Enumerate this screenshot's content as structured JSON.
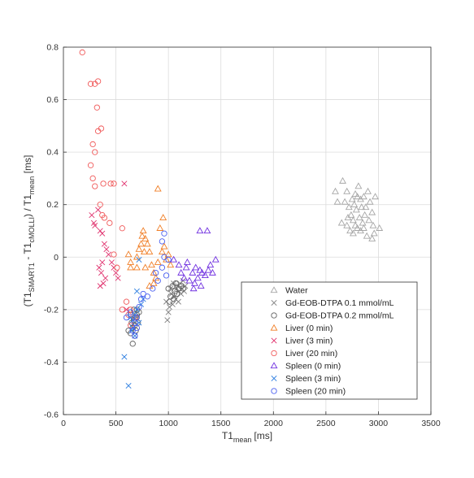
{
  "chart_data": {
    "type": "scatter",
    "title": "",
    "xlabel": "T1",
    "xlabel_sub": "mean",
    "xlabel_unit": "[ms]",
    "ylabel_parts": [
      "(T1",
      "SMART1",
      " - T1",
      "cMOLLI",
      ") / T1",
      "mean",
      " [ms]"
    ],
    "xlim": [
      0,
      3500
    ],
    "ylim": [
      -0.6,
      0.8
    ],
    "xticks": [
      0,
      500,
      1000,
      1500,
      2000,
      2500,
      3000,
      3500
    ],
    "yticks": [
      -0.6,
      -0.4,
      -0.2,
      0,
      0.2,
      0.4,
      0.6,
      0.8
    ],
    "xtick_labels": [
      "0",
      "500",
      "1000",
      "1500",
      "2000",
      "2500",
      "3000",
      "3500"
    ],
    "ytick_labels": [
      "-0.6",
      "-0.4",
      "-0.2",
      "0",
      "0.2",
      "0.4",
      "0.6",
      "0.8"
    ],
    "grid": true,
    "legend_position": "bottom-right",
    "series": [
      {
        "name": "Water",
        "marker": "triangle",
        "color": "#a6a6a6",
        "points": [
          [
            2590,
            0.25
          ],
          [
            2660,
            0.29
          ],
          [
            2610,
            0.21
          ],
          [
            2700,
            0.25
          ],
          [
            2750,
            0.22
          ],
          [
            2780,
            0.24
          ],
          [
            2810,
            0.27
          ],
          [
            2830,
            0.22
          ],
          [
            2860,
            0.23
          ],
          [
            2880,
            0.19
          ],
          [
            2900,
            0.25
          ],
          [
            2920,
            0.21
          ],
          [
            2940,
            0.17
          ],
          [
            2970,
            0.23
          ],
          [
            2720,
            0.19
          ],
          [
            2740,
            0.16
          ],
          [
            2760,
            0.14
          ],
          [
            2790,
            0.18
          ],
          [
            2820,
            0.15
          ],
          [
            2850,
            0.13
          ],
          [
            2870,
            0.16
          ],
          [
            2910,
            0.14
          ],
          [
            2950,
            0.12
          ],
          [
            3010,
            0.11
          ],
          [
            2700,
            0.12
          ],
          [
            2730,
            0.1
          ],
          [
            2760,
            0.09
          ],
          [
            2800,
            0.11
          ],
          [
            2830,
            0.1
          ],
          [
            2890,
            0.08
          ],
          [
            2940,
            0.07
          ],
          [
            2960,
            0.09
          ],
          [
            2680,
            0.21
          ],
          [
            2770,
            0.2
          ],
          [
            2840,
            0.19
          ],
          [
            2710,
            0.15
          ],
          [
            2650,
            0.13
          ],
          [
            2860,
            0.11
          ],
          [
            2780,
            0.12
          ],
          [
            2800,
            0.23
          ]
        ]
      },
      {
        "name": "Gd-EOB-DTPA 0.1 mmol/mL",
        "marker": "x",
        "color": "#808080",
        "points": [
          [
            980,
            -0.17
          ],
          [
            1000,
            -0.21
          ],
          [
            1020,
            -0.12
          ],
          [
            1030,
            -0.14
          ],
          [
            1050,
            -0.1
          ],
          [
            1060,
            -0.15
          ],
          [
            1080,
            -0.12
          ],
          [
            1090,
            -0.11
          ],
          [
            1100,
            -0.13
          ],
          [
            1110,
            -0.1
          ],
          [
            1120,
            -0.14
          ],
          [
            1130,
            -0.12
          ],
          [
            1140,
            -0.09
          ],
          [
            1150,
            -0.13
          ],
          [
            1160,
            -0.11
          ],
          [
            990,
            -0.24
          ],
          [
            1040,
            -0.18
          ],
          [
            1070,
            -0.16
          ],
          [
            1010,
            -0.19
          ],
          [
            1095,
            -0.17
          ]
        ]
      },
      {
        "name": "Gd-EOB-DTPA 0.2 mmol/mL",
        "marker": "circle",
        "color": "#606060",
        "points": [
          [
            620,
            -0.28
          ],
          [
            640,
            -0.29
          ],
          [
            650,
            -0.25
          ],
          [
            660,
            -0.27
          ],
          [
            670,
            -0.24
          ],
          [
            680,
            -0.26
          ],
          [
            690,
            -0.23
          ],
          [
            700,
            -0.22
          ],
          [
            710,
            -0.25
          ],
          [
            720,
            -0.21
          ],
          [
            660,
            -0.33
          ],
          [
            680,
            -0.3
          ],
          [
            700,
            -0.2
          ],
          [
            640,
            -0.22
          ],
          [
            690,
            -0.28
          ],
          [
            670,
            -0.2
          ],
          [
            1000,
            -0.12
          ],
          [
            1020,
            -0.15
          ],
          [
            1040,
            -0.11
          ],
          [
            1060,
            -0.13
          ],
          [
            1080,
            -0.14
          ],
          [
            1100,
            -0.12
          ],
          [
            1120,
            -0.11
          ],
          [
            1140,
            -0.12
          ],
          [
            1050,
            -0.16
          ],
          [
            1010,
            -0.17
          ],
          [
            1070,
            -0.1
          ]
        ]
      },
      {
        "name": "Liver (0 min)",
        "marker": "triangle",
        "color": "#f07e26",
        "points": [
          [
            620,
            0.01
          ],
          [
            640,
            -0.02
          ],
          [
            700,
            -0.04
          ],
          [
            720,
            0.03
          ],
          [
            740,
            0.05
          ],
          [
            750,
            0.08
          ],
          [
            760,
            0.1
          ],
          [
            780,
            0.07
          ],
          [
            800,
            0.05
          ],
          [
            820,
            0.02
          ],
          [
            840,
            -0.03
          ],
          [
            860,
            -0.06
          ],
          [
            880,
            -0.08
          ],
          [
            900,
            0.26
          ],
          [
            920,
            0.11
          ],
          [
            940,
            0.02
          ],
          [
            950,
            0.15
          ],
          [
            960,
            0.04
          ],
          [
            980,
            -0.01
          ],
          [
            1000,
            0.01
          ],
          [
            1020,
            -0.03
          ],
          [
            640,
            -0.04
          ],
          [
            700,
            0.0
          ],
          [
            770,
            0.02
          ],
          [
            820,
            -0.11
          ],
          [
            860,
            -0.1
          ],
          [
            780,
            -0.04
          ],
          [
            900,
            -0.02
          ]
        ]
      },
      {
        "name": "Liver (3 min)",
        "marker": "x",
        "color": "#e0326e",
        "points": [
          [
            270,
            0.16
          ],
          [
            290,
            0.13
          ],
          [
            300,
            0.12
          ],
          [
            330,
            0.18
          ],
          [
            350,
            0.1
          ],
          [
            370,
            0.09
          ],
          [
            390,
            0.05
          ],
          [
            410,
            0.03
          ],
          [
            430,
            0.01
          ],
          [
            460,
            -0.02
          ],
          [
            480,
            -0.04
          ],
          [
            500,
            -0.06
          ],
          [
            520,
            -0.08
          ],
          [
            340,
            -0.04
          ],
          [
            360,
            -0.06
          ],
          [
            380,
            -0.1
          ],
          [
            350,
            -0.11
          ],
          [
            400,
            -0.08
          ],
          [
            580,
            0.28
          ],
          [
            600,
            -0.2
          ],
          [
            370,
            -0.02
          ]
        ]
      },
      {
        "name": "Liver (20 min)",
        "marker": "circle",
        "color": "#f05a5a",
        "points": [
          [
            180,
            0.78
          ],
          [
            260,
            0.66
          ],
          [
            300,
            0.66
          ],
          [
            330,
            0.67
          ],
          [
            320,
            0.57
          ],
          [
            360,
            0.49
          ],
          [
            330,
            0.48
          ],
          [
            280,
            0.43
          ],
          [
            300,
            0.4
          ],
          [
            260,
            0.35
          ],
          [
            300,
            0.27
          ],
          [
            280,
            0.3
          ],
          [
            380,
            0.28
          ],
          [
            450,
            0.28
          ],
          [
            480,
            0.28
          ],
          [
            350,
            0.2
          ],
          [
            370,
            0.16
          ],
          [
            390,
            0.15
          ],
          [
            440,
            0.13
          ],
          [
            560,
            0.11
          ],
          [
            480,
            0.01
          ],
          [
            600,
            -0.17
          ],
          [
            640,
            -0.2
          ],
          [
            680,
            -0.23
          ],
          [
            560,
            -0.2
          ],
          [
            640,
            -0.26
          ],
          [
            620,
            -0.22
          ],
          [
            510,
            -0.04
          ]
        ]
      },
      {
        "name": "Spleen (0 min)",
        "marker": "triangle",
        "color": "#7030e0",
        "points": [
          [
            1050,
            -0.01
          ],
          [
            1100,
            -0.03
          ],
          [
            1120,
            -0.06
          ],
          [
            1150,
            -0.08
          ],
          [
            1170,
            -0.04
          ],
          [
            1200,
            -0.09
          ],
          [
            1230,
            -0.06
          ],
          [
            1250,
            -0.1
          ],
          [
            1280,
            -0.08
          ],
          [
            1300,
            -0.05
          ],
          [
            1320,
            -0.06
          ],
          [
            1350,
            -0.07
          ],
          [
            1380,
            -0.05
          ],
          [
            1400,
            -0.03
          ],
          [
            1420,
            -0.06
          ],
          [
            1450,
            -0.01
          ],
          [
            1300,
            0.1
          ],
          [
            1370,
            0.1
          ],
          [
            1240,
            -0.12
          ],
          [
            1180,
            -0.02
          ],
          [
            1310,
            -0.11
          ],
          [
            1260,
            -0.04
          ]
        ]
      },
      {
        "name": "Spleen (3 min)",
        "marker": "x",
        "color": "#2b7de0",
        "points": [
          [
            580,
            -0.38
          ],
          [
            620,
            -0.49
          ],
          [
            650,
            -0.28
          ],
          [
            660,
            -0.24
          ],
          [
            680,
            -0.22
          ],
          [
            700,
            -0.2
          ],
          [
            720,
            -0.25
          ],
          [
            700,
            -0.13
          ],
          [
            740,
            -0.18
          ],
          [
            760,
            -0.16
          ],
          [
            720,
            -0.01
          ],
          [
            680,
            -0.3
          ],
          [
            660,
            -0.27
          ],
          [
            640,
            -0.23
          ]
        ]
      },
      {
        "name": "Spleen (20 min)",
        "marker": "circle",
        "color": "#4a5ff0",
        "points": [
          [
            600,
            -0.23
          ],
          [
            640,
            -0.21
          ],
          [
            660,
            -0.28
          ],
          [
            680,
            -0.25
          ],
          [
            700,
            -0.23
          ],
          [
            720,
            -0.19
          ],
          [
            740,
            -0.16
          ],
          [
            760,
            -0.14
          ],
          [
            800,
            -0.15
          ],
          [
            850,
            -0.12
          ],
          [
            880,
            -0.06
          ],
          [
            900,
            -0.09
          ],
          [
            940,
            -0.04
          ],
          [
            980,
            -0.07
          ],
          [
            1000,
            -0.01
          ],
          [
            960,
            0.0
          ],
          [
            940,
            0.06
          ],
          [
            960,
            0.09
          ],
          [
            680,
            -0.3
          ],
          [
            700,
            -0.27
          ]
        ]
      }
    ]
  }
}
